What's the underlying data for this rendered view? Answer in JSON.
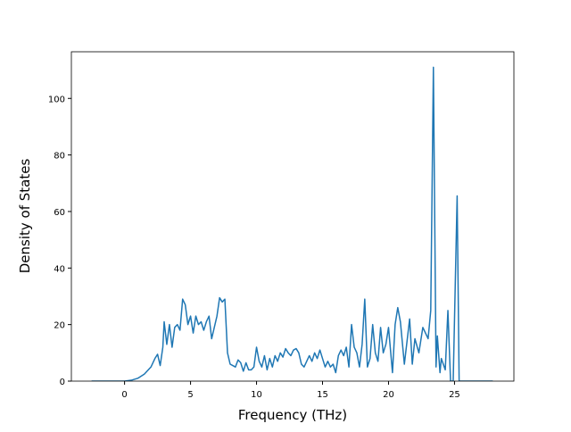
{
  "chart_data": {
    "type": "line",
    "x_label": "Frequency (THz)",
    "y_label": "Density of States",
    "color": "#1f77b4",
    "x": [
      -2.5,
      -1,
      0,
      0.5,
      1,
      1.5,
      2,
      2.3,
      2.5,
      2.7,
      2.9,
      3.0,
      3.2,
      3.4,
      3.6,
      3.8,
      4.0,
      4.2,
      4.4,
      4.6,
      4.8,
      5.0,
      5.2,
      5.4,
      5.6,
      5.8,
      6.0,
      6.2,
      6.4,
      6.6,
      6.8,
      7.0,
      7.2,
      7.4,
      7.6,
      7.8,
      8.0,
      8.2,
      8.4,
      8.6,
      8.8,
      9.0,
      9.2,
      9.4,
      9.6,
      9.8,
      10.0,
      10.2,
      10.4,
      10.6,
      10.8,
      11.0,
      11.2,
      11.4,
      11.6,
      11.8,
      12.0,
      12.2,
      12.4,
      12.6,
      12.8,
      13.0,
      13.2,
      13.4,
      13.6,
      13.8,
      14.0,
      14.2,
      14.4,
      14.6,
      14.8,
      15.0,
      15.2,
      15.4,
      15.6,
      15.8,
      16.0,
      16.2,
      16.4,
      16.6,
      16.8,
      17.0,
      17.2,
      17.4,
      17.6,
      17.8,
      18.0,
      18.2,
      18.4,
      18.6,
      18.8,
      19.0,
      19.2,
      19.4,
      19.6,
      19.8,
      20.0,
      20.3,
      20.5,
      20.7,
      20.9,
      21.2,
      21.6,
      21.8,
      22.0,
      22.3,
      22.6,
      23.0,
      23.2,
      23.4,
      23.6,
      23.7,
      23.9,
      24.0,
      24.3,
      24.5,
      24.7,
      24.9,
      25.2,
      25.35,
      25.7,
      27.9
    ],
    "values": [
      0,
      0,
      0,
      0.3,
      1,
      2.5,
      5,
      8,
      9.5,
      5.5,
      12,
      21,
      13,
      20,
      12,
      19,
      20,
      18,
      29,
      27,
      20,
      23,
      17,
      23,
      20,
      21,
      18,
      21,
      23,
      15,
      19,
      23,
      29.5,
      28,
      29,
      10,
      6,
      5.5,
      5,
      7.5,
      6.5,
      3.5,
      6.5,
      4,
      4,
      5,
      12,
      7,
      5,
      9,
      4,
      8,
      5,
      9,
      7,
      10,
      8.5,
      11.5,
      10,
      9,
      11,
      11.5,
      10,
      6,
      5,
      7,
      9,
      7,
      10,
      8,
      11,
      8,
      5,
      7,
      5,
      6,
      3,
      9,
      11,
      9,
      12,
      5,
      20,
      12,
      10,
      5,
      13,
      29,
      5,
      8,
      20,
      10,
      7,
      19,
      10,
      13,
      19,
      3,
      20,
      26,
      21,
      6,
      22,
      6,
      15,
      10,
      19,
      15,
      25,
      111,
      5,
      16,
      3,
      8,
      4,
      25,
      0,
      0,
      65.5,
      0,
      0,
      0
    ],
    "xlim": [
      -4.03,
      29.5
    ],
    "ylim": [
      0,
      116.5
    ],
    "xticks": [
      0,
      5,
      10,
      15,
      20,
      25
    ],
    "yticks": [
      0,
      20,
      40,
      60,
      80,
      100
    ]
  }
}
